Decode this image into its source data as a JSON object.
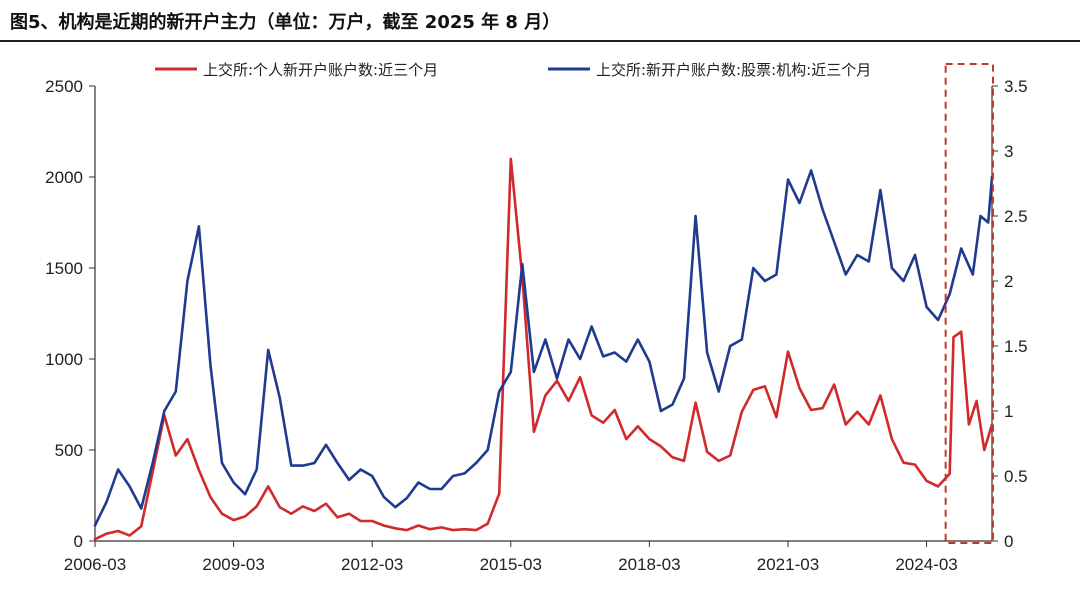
{
  "figure": {
    "title": "图5、机构是近期的新开户主力（单位：万户，截至 2025 年 8 月）"
  },
  "chart_data": {
    "type": "line",
    "x_ticks": [
      "2006-03",
      "2009-03",
      "2012-03",
      "2015-03",
      "2018-03",
      "2021-03",
      "2024-03"
    ],
    "x_range": [
      "2006-03",
      "2025-08"
    ],
    "y_left": {
      "ticks": [
        "0",
        "500",
        "1000",
        "1500",
        "2000",
        "2500"
      ],
      "range": [
        0,
        2500
      ]
    },
    "y_right": {
      "ticks": [
        "0",
        "0.5",
        "1",
        "1.5",
        "2",
        "2.5",
        "3",
        "3.5"
      ],
      "range": [
        0,
        3.5
      ]
    },
    "legend_position": "top",
    "grid": false,
    "highlight": {
      "x_start": "2024-09",
      "x_end": "2025-08",
      "style": "dashed-box",
      "color": "#c0392b"
    },
    "series": [
      {
        "name": "上交所:个人新开户账户数:近三个月",
        "axis": "left",
        "color": "#d02a2a",
        "points": [
          [
            "2006-03",
            10
          ],
          [
            "2006-06",
            40
          ],
          [
            "2006-09",
            55
          ],
          [
            "2006-12",
            30
          ],
          [
            "2007-03",
            80
          ],
          [
            "2007-06",
            380
          ],
          [
            "2007-09",
            690
          ],
          [
            "2007-12",
            470
          ],
          [
            "2008-03",
            560
          ],
          [
            "2008-06",
            390
          ],
          [
            "2008-09",
            240
          ],
          [
            "2008-12",
            150
          ],
          [
            "2009-03",
            115
          ],
          [
            "2009-06",
            135
          ],
          [
            "2009-09",
            190
          ],
          [
            "2009-12",
            300
          ],
          [
            "2010-03",
            185
          ],
          [
            "2010-06",
            150
          ],
          [
            "2010-09",
            190
          ],
          [
            "2010-12",
            165
          ],
          [
            "2011-03",
            205
          ],
          [
            "2011-06",
            130
          ],
          [
            "2011-09",
            150
          ],
          [
            "2011-12",
            110
          ],
          [
            "2012-03",
            110
          ],
          [
            "2012-06",
            85
          ],
          [
            "2012-09",
            70
          ],
          [
            "2012-12",
            60
          ],
          [
            "2013-03",
            85
          ],
          [
            "2013-06",
            65
          ],
          [
            "2013-09",
            75
          ],
          [
            "2013-12",
            60
          ],
          [
            "2014-03",
            65
          ],
          [
            "2014-06",
            60
          ],
          [
            "2014-09",
            95
          ],
          [
            "2014-12",
            260
          ],
          [
            "2015-03",
            2100
          ],
          [
            "2015-06",
            1450
          ],
          [
            "2015-09",
            600
          ],
          [
            "2015-12",
            800
          ],
          [
            "2016-03",
            880
          ],
          [
            "2016-06",
            770
          ],
          [
            "2016-09",
            900
          ],
          [
            "2016-12",
            690
          ],
          [
            "2017-03",
            650
          ],
          [
            "2017-06",
            720
          ],
          [
            "2017-09",
            560
          ],
          [
            "2017-12",
            630
          ],
          [
            "2018-03",
            560
          ],
          [
            "2018-06",
            520
          ],
          [
            "2018-09",
            460
          ],
          [
            "2018-12",
            440
          ],
          [
            "2019-03",
            760
          ],
          [
            "2019-06",
            490
          ],
          [
            "2019-09",
            440
          ],
          [
            "2019-12",
            470
          ],
          [
            "2020-03",
            710
          ],
          [
            "2020-06",
            830
          ],
          [
            "2020-09",
            850
          ],
          [
            "2020-12",
            680
          ],
          [
            "2021-03",
            1040
          ],
          [
            "2021-06",
            840
          ],
          [
            "2021-09",
            720
          ],
          [
            "2021-12",
            730
          ],
          [
            "2022-03",
            860
          ],
          [
            "2022-06",
            640
          ],
          [
            "2022-09",
            710
          ],
          [
            "2022-12",
            640
          ],
          [
            "2023-03",
            800
          ],
          [
            "2023-06",
            560
          ],
          [
            "2023-09",
            430
          ],
          [
            "2023-12",
            420
          ],
          [
            "2024-03",
            330
          ],
          [
            "2024-06",
            300
          ],
          [
            "2024-09",
            370
          ],
          [
            "2024-10",
            1120
          ],
          [
            "2024-12",
            1150
          ],
          [
            "2025-02",
            640
          ],
          [
            "2025-04",
            770
          ],
          [
            "2025-06",
            500
          ],
          [
            "2025-08",
            640
          ]
        ]
      },
      {
        "name": "上交所:新开户账户数:股票:机构:近三个月",
        "axis": "right",
        "color": "#1f3a8f",
        "points": [
          [
            "2006-03",
            0.12
          ],
          [
            "2006-06",
            0.3
          ],
          [
            "2006-09",
            0.55
          ],
          [
            "2006-12",
            0.42
          ],
          [
            "2007-03",
            0.25
          ],
          [
            "2007-06",
            0.6
          ],
          [
            "2007-09",
            1.0
          ],
          [
            "2007-12",
            1.15
          ],
          [
            "2008-03",
            2.0
          ],
          [
            "2008-06",
            2.42
          ],
          [
            "2008-09",
            1.35
          ],
          [
            "2008-12",
            0.6
          ],
          [
            "2009-03",
            0.45
          ],
          [
            "2009-06",
            0.36
          ],
          [
            "2009-09",
            0.55
          ],
          [
            "2009-12",
            1.47
          ],
          [
            "2010-03",
            1.1
          ],
          [
            "2010-06",
            0.58
          ],
          [
            "2010-09",
            0.58
          ],
          [
            "2010-12",
            0.6
          ],
          [
            "2011-03",
            0.74
          ],
          [
            "2011-06",
            0.6
          ],
          [
            "2011-09",
            0.47
          ],
          [
            "2011-12",
            0.55
          ],
          [
            "2012-03",
            0.5
          ],
          [
            "2012-06",
            0.34
          ],
          [
            "2012-09",
            0.26
          ],
          [
            "2012-12",
            0.33
          ],
          [
            "2013-03",
            0.45
          ],
          [
            "2013-06",
            0.4
          ],
          [
            "2013-09",
            0.4
          ],
          [
            "2013-12",
            0.5
          ],
          [
            "2014-03",
            0.52
          ],
          [
            "2014-06",
            0.6
          ],
          [
            "2014-09",
            0.7
          ],
          [
            "2014-12",
            1.15
          ],
          [
            "2015-03",
            1.3
          ],
          [
            "2015-06",
            2.13
          ],
          [
            "2015-09",
            1.3
          ],
          [
            "2015-12",
            1.55
          ],
          [
            "2016-03",
            1.25
          ],
          [
            "2016-06",
            1.55
          ],
          [
            "2016-09",
            1.4
          ],
          [
            "2016-12",
            1.65
          ],
          [
            "2017-03",
            1.42
          ],
          [
            "2017-06",
            1.45
          ],
          [
            "2017-09",
            1.38
          ],
          [
            "2017-12",
            1.55
          ],
          [
            "2018-03",
            1.38
          ],
          [
            "2018-06",
            1.0
          ],
          [
            "2018-09",
            1.05
          ],
          [
            "2018-12",
            1.25
          ],
          [
            "2019-03",
            2.5
          ],
          [
            "2019-06",
            1.45
          ],
          [
            "2019-09",
            1.15
          ],
          [
            "2019-12",
            1.5
          ],
          [
            "2020-03",
            1.55
          ],
          [
            "2020-06",
            2.1
          ],
          [
            "2020-09",
            2.0
          ],
          [
            "2020-12",
            2.05
          ],
          [
            "2021-03",
            2.78
          ],
          [
            "2021-06",
            2.6
          ],
          [
            "2021-09",
            2.85
          ],
          [
            "2021-12",
            2.55
          ],
          [
            "2022-03",
            2.3
          ],
          [
            "2022-06",
            2.05
          ],
          [
            "2022-09",
            2.2
          ],
          [
            "2022-12",
            2.15
          ],
          [
            "2023-03",
            2.7
          ],
          [
            "2023-06",
            2.1
          ],
          [
            "2023-09",
            2.0
          ],
          [
            "2023-12",
            2.2
          ],
          [
            "2024-03",
            1.8
          ],
          [
            "2024-06",
            1.7
          ],
          [
            "2024-09",
            1.9
          ],
          [
            "2024-12",
            2.25
          ],
          [
            "2025-03",
            2.05
          ],
          [
            "2025-05",
            2.5
          ],
          [
            "2025-07",
            2.45
          ],
          [
            "2025-08",
            2.8
          ]
        ]
      }
    ]
  }
}
